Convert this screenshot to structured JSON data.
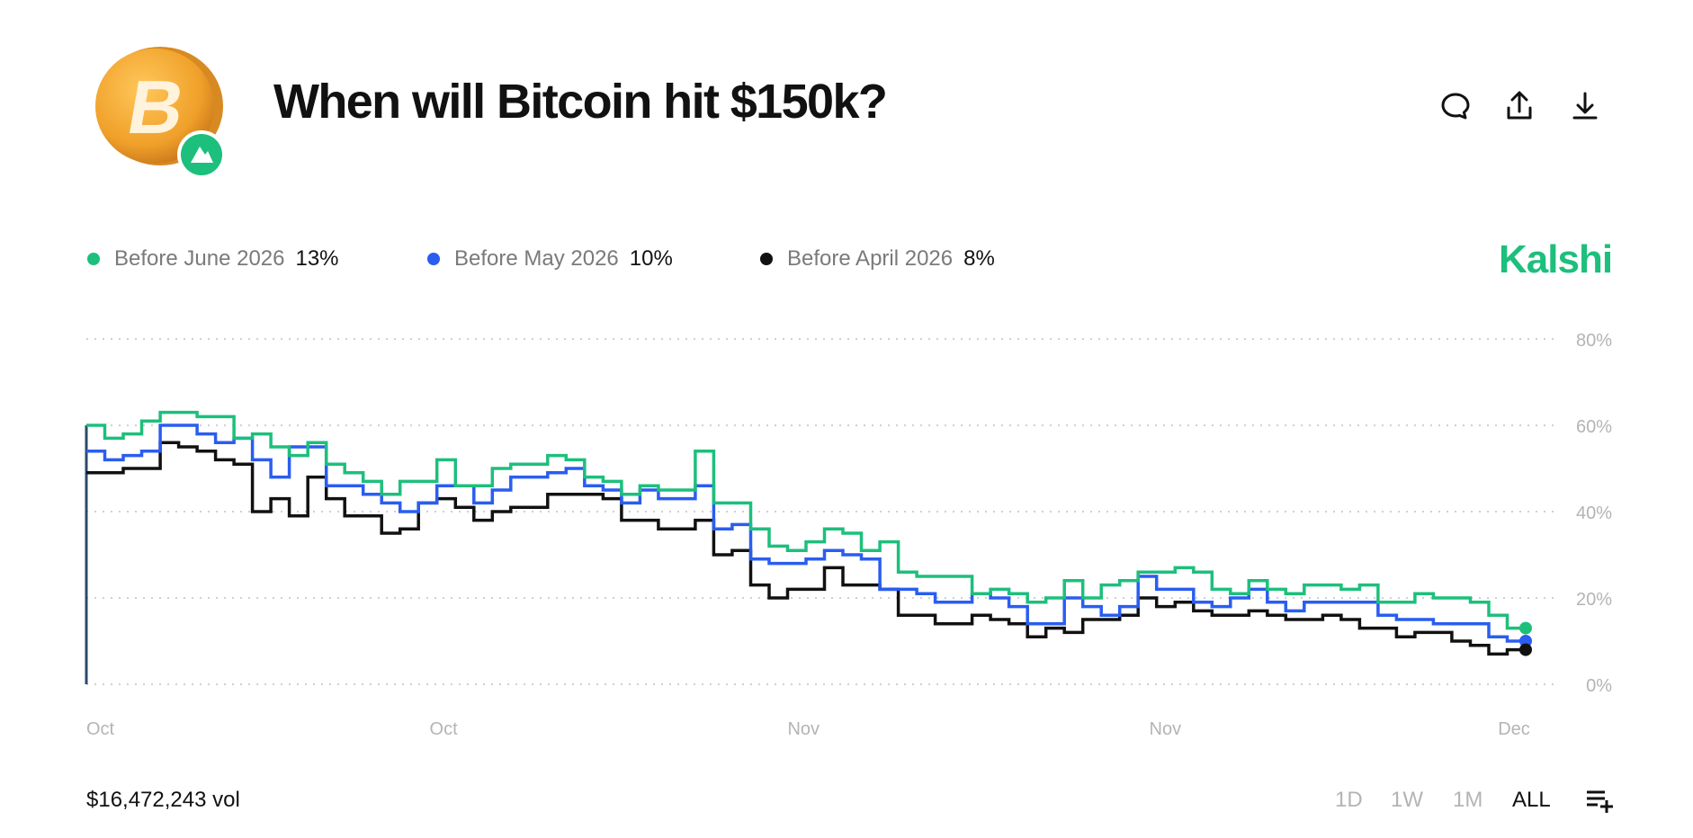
{
  "header": {
    "title": "When will Bitcoin hit $150k?",
    "icons": [
      "bitcoin-coin-icon",
      "comment-icon",
      "share-icon",
      "download-icon"
    ]
  },
  "brand": "Kalshi",
  "legend": [
    {
      "label": "Before June 2026",
      "value": "13%",
      "color": "#1dbf7c"
    },
    {
      "label": "Before May 2026",
      "value": "10%",
      "color": "#2a5df0"
    },
    {
      "label": "Before April 2026",
      "value": "8%",
      "color": "#111111"
    }
  ],
  "footer": {
    "volume": "$16,472,243 vol",
    "ranges": [
      "1D",
      "1W",
      "1M",
      "ALL"
    ],
    "active_range": "ALL",
    "settings_icon": "list-add-icon"
  },
  "chart_data": {
    "type": "line",
    "step": true,
    "y_ticks": [
      "80%",
      "60%",
      "40%",
      "20%",
      "0%"
    ],
    "ylim": [
      0,
      80
    ],
    "grid": true,
    "x_ticks": [
      {
        "label": "Oct",
        "at": 0
      },
      {
        "label": "Oct",
        "at": 18.6
      },
      {
        "label": "Nov",
        "at": 38
      },
      {
        "label": "Nov",
        "at": 57.6
      },
      {
        "label": "Dec",
        "at": 76.5
      }
    ],
    "legend_position": "top-left",
    "series": [
      {
        "name": "Before June 2026",
        "color": "#1dbf7c",
        "values": [
          60,
          57,
          58,
          61,
          63,
          63,
          62,
          62,
          57,
          58,
          55,
          53,
          56,
          51,
          49,
          47,
          44,
          47,
          47,
          52,
          46,
          46,
          50,
          51,
          51,
          53,
          52,
          48,
          47,
          44,
          46,
          45,
          45,
          54,
          42,
          42,
          36,
          32,
          31,
          33,
          36,
          35,
          31,
          33,
          26,
          25,
          25,
          25,
          21,
          22,
          21,
          19,
          20,
          24,
          20,
          23,
          24,
          26,
          26,
          27,
          26,
          22,
          21,
          24,
          22,
          21,
          23,
          23,
          22,
          23,
          19,
          19,
          21,
          20,
          20,
          19,
          16,
          13
        ]
      },
      {
        "name": "Before May 2026",
        "color": "#2a5df0",
        "values": [
          54,
          52,
          53,
          54,
          60,
          60,
          58,
          56,
          57,
          52,
          48,
          55,
          55,
          46,
          46,
          44,
          42,
          40,
          42,
          46,
          46,
          42,
          45,
          48,
          48,
          49,
          50,
          46,
          45,
          42,
          45,
          43,
          43,
          46,
          36,
          37,
          29,
          28,
          28,
          29,
          31,
          30,
          29,
          22,
          22,
          21,
          19,
          19,
          21,
          20,
          18,
          14,
          14,
          20,
          18,
          16,
          18,
          25,
          22,
          22,
          19,
          18,
          20,
          22,
          19,
          17,
          19,
          19,
          19,
          19,
          16,
          15,
          15,
          14,
          14,
          14,
          11,
          10
        ]
      },
      {
        "name": "Before April 2026",
        "color": "#111111",
        "values": [
          49,
          49,
          50,
          50,
          56,
          55,
          54,
          52,
          51,
          40,
          43,
          39,
          48,
          43,
          39,
          39,
          35,
          36,
          42,
          43,
          41,
          38,
          40,
          41,
          41,
          44,
          44,
          44,
          43,
          38,
          38,
          36,
          36,
          38,
          30,
          31,
          23,
          20,
          22,
          22,
          27,
          23,
          23,
          22,
          16,
          16,
          14,
          14,
          16,
          15,
          14,
          11,
          13,
          12,
          15,
          15,
          16,
          20,
          18,
          19,
          17,
          16,
          16,
          17,
          16,
          15,
          15,
          16,
          15,
          13,
          13,
          11,
          12,
          12,
          10,
          9,
          7,
          8
        ]
      }
    ]
  }
}
